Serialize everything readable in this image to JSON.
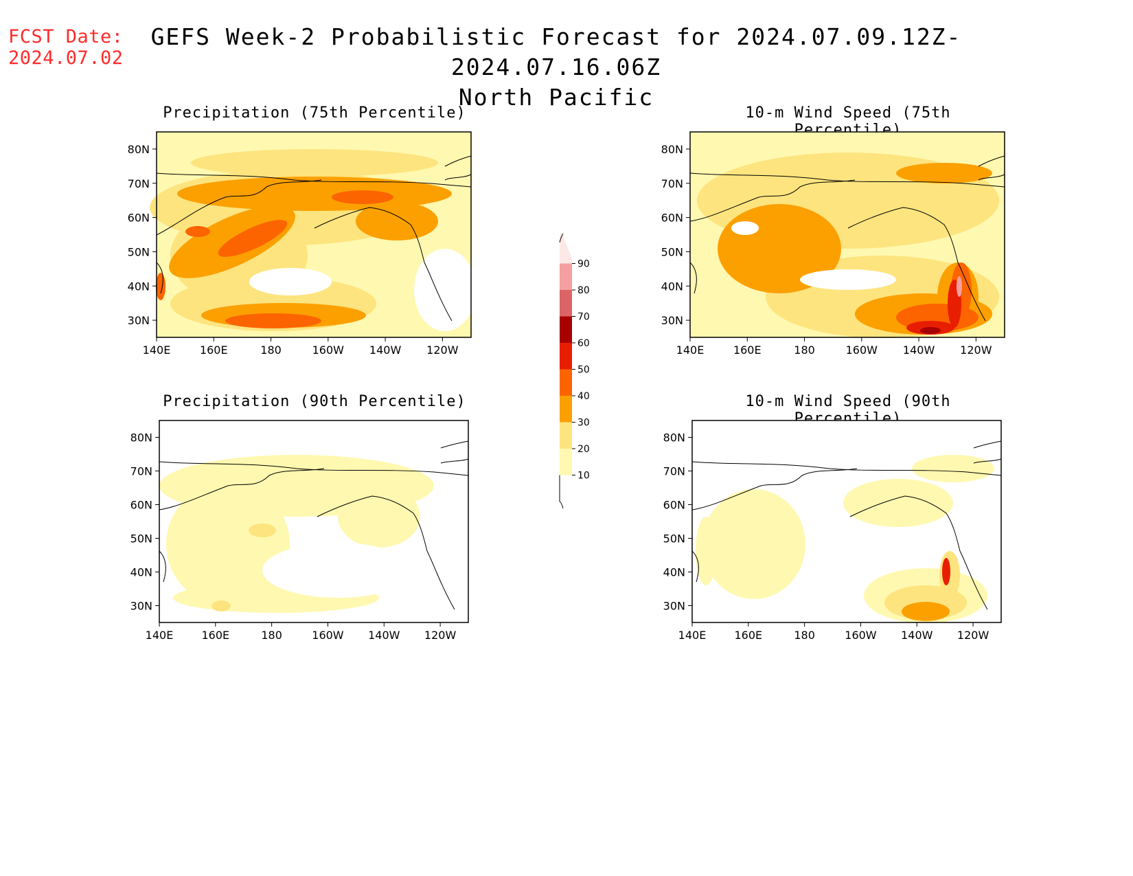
{
  "fcst": {
    "line1": "FCST Date:",
    "line2": "2024.07.02"
  },
  "title": {
    "line1": "GEFS Week-2 Probabilistic Forecast for 2024.07.09.12Z-2024.07.16.06Z",
    "line2": "North Pacific"
  },
  "panels": [
    {
      "title": "Precipitation (75th Percentile)"
    },
    {
      "title": "10-m Wind Speed (75th Percentile)"
    },
    {
      "title": "Precipitation (90th Percentile)"
    },
    {
      "title": "10-m Wind Speed (90th Percentile)"
    }
  ],
  "axes": {
    "lat_labels": [
      "80N",
      "70N",
      "60N",
      "50N",
      "40N",
      "30N"
    ],
    "lon_labels": [
      "140E",
      "160E",
      "180",
      "160W",
      "140W",
      "120W"
    ]
  },
  "colorbar": {
    "levels": [
      "10",
      "20",
      "30",
      "40",
      "50",
      "60",
      "70",
      "80",
      "90"
    ],
    "colors": [
      "#fff8b0",
      "#fde47f",
      "#fca000",
      "#fc6400",
      "#e81e00",
      "#a80000",
      "#dc6464",
      "#f4a0a0",
      "#fde8e8"
    ]
  }
}
